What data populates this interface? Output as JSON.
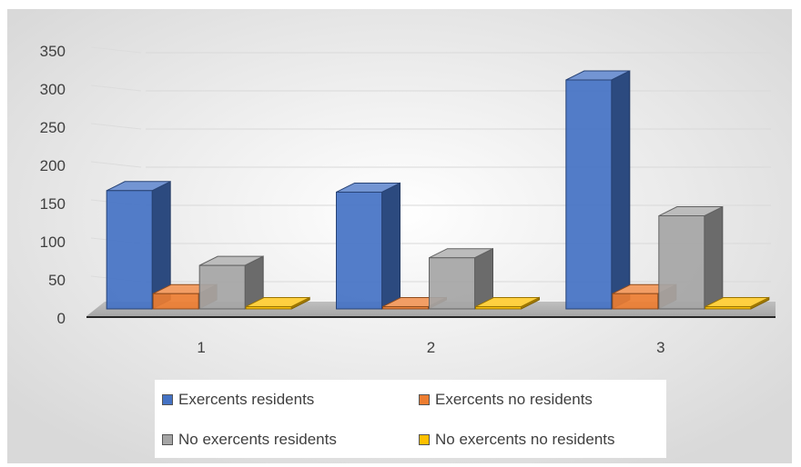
{
  "chart_data": {
    "type": "bar",
    "categories": [
      "1",
      "2",
      "3"
    ],
    "series": [
      {
        "name": "Exercents residents",
        "values": [
          155,
          153,
          300
        ],
        "color": "#4472C4"
      },
      {
        "name": "Exercents no residents",
        "values": [
          20,
          3,
          20
        ],
        "color": "#ED7D31"
      },
      {
        "name": "No exercents residents",
        "values": [
          57,
          67,
          122
        ],
        "color": "#A5A5A5"
      },
      {
        "name": "No exercents no residents",
        "values": [
          3,
          3,
          3
        ],
        "color": "#FFC000"
      }
    ],
    "yticks": [
      "0",
      "50",
      "100",
      "150",
      "200",
      "250",
      "300",
      "350"
    ],
    "ylim": [
      0,
      350
    ],
    "grid": true,
    "legend_position": "bottom",
    "title": "",
    "xlabel": "",
    "ylabel": ""
  }
}
